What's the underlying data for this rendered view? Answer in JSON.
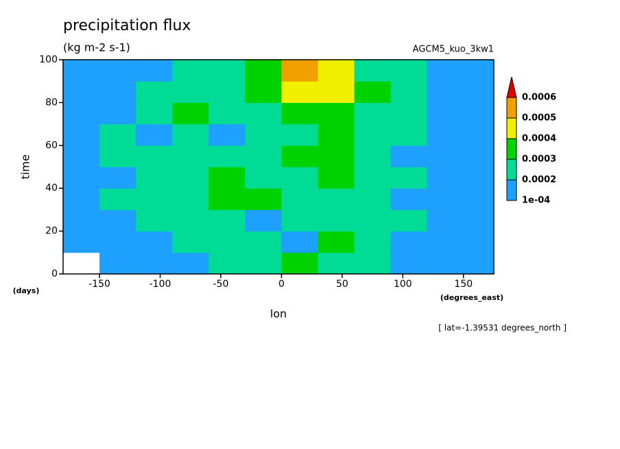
{
  "chart_data": {
    "type": "contour",
    "title": "precipitation flux",
    "subtitle": "(kg m-2 s-1)",
    "experiment": "AGCM5_kuo_3kw1",
    "x_label": "lon",
    "x_units": "(degrees_east)",
    "y_label": "time",
    "y_units": "(days)",
    "annotation": "[ lat=-1.39531 degrees_north ]",
    "xlim": [
      -180,
      175
    ],
    "ylim": [
      0,
      100
    ],
    "xticks": [
      -150,
      -100,
      -50,
      0,
      50,
      100,
      150
    ],
    "yticks": [
      0,
      20,
      40,
      60,
      80,
      100
    ],
    "x": [
      -165,
      -135,
      -105,
      -75,
      -45,
      -15,
      15,
      45,
      75,
      105,
      135,
      165
    ],
    "y": [
      5,
      15,
      25,
      35,
      45,
      55,
      65,
      75,
      85,
      95
    ],
    "z": [
      [
        8e-05,
        0.00012,
        0.00015,
        0.00018,
        0.00022,
        0.00028,
        0.00035,
        0.00026,
        0.0002,
        0.00018,
        0.00014,
        0.0001
      ],
      [
        0.00014,
        0.00012,
        0.00018,
        0.00022,
        0.00025,
        0.0002,
        0.00018,
        0.0003,
        0.00024,
        0.00016,
        0.00015,
        0.00012
      ],
      [
        0.00016,
        0.00018,
        0.00022,
        0.00028,
        0.00024,
        0.00018,
        0.0002,
        0.00026,
        0.00028,
        0.00022,
        0.00012,
        0.0001
      ],
      [
        0.0001,
        0.0002,
        0.00026,
        0.00022,
        0.0003,
        0.00032,
        0.00028,
        0.00022,
        0.0002,
        0.00018,
        0.00014,
        0.00012
      ],
      [
        0.00012,
        0.00016,
        0.00024,
        0.0002,
        0.00032,
        0.00028,
        0.00026,
        0.0003,
        0.00024,
        0.0002,
        0.00016,
        0.0001
      ],
      [
        0.00014,
        0.00022,
        0.0002,
        0.00024,
        0.00022,
        0.00026,
        0.0003,
        0.00034,
        0.00022,
        0.00018,
        0.00015,
        0.00012
      ],
      [
        0.00016,
        0.00024,
        0.00018,
        0.0002,
        0.00014,
        0.00022,
        0.00028,
        0.00032,
        0.00026,
        0.0002,
        0.00018,
        0.00016
      ],
      [
        0.00012,
        0.00018,
        0.00022,
        0.0003,
        0.0002,
        0.00026,
        0.00036,
        0.0003,
        0.00024,
        0.00022,
        0.00016,
        0.00014
      ],
      [
        0.00014,
        0.00016,
        0.0002,
        0.00024,
        0.00026,
        0.0003,
        0.00042,
        0.00046,
        0.00034,
        0.00026,
        0.00018,
        0.00012
      ],
      [
        0.0001,
        0.00014,
        0.00018,
        0.00022,
        0.00028,
        0.00036,
        0.00052,
        0.0004,
        0.00028,
        0.0002,
        0.00016,
        0.00012
      ]
    ],
    "levels": [
      {
        "value": 0.0001,
        "label": "1e-04"
      },
      0.0002,
      0.0003,
      0.0004,
      0.0005,
      0.0006
    ],
    "colors": [
      "#1ea0ff",
      "#00dc96",
      "#00d200",
      "#f0f000",
      "#f0a000",
      "#e00000"
    ]
  }
}
